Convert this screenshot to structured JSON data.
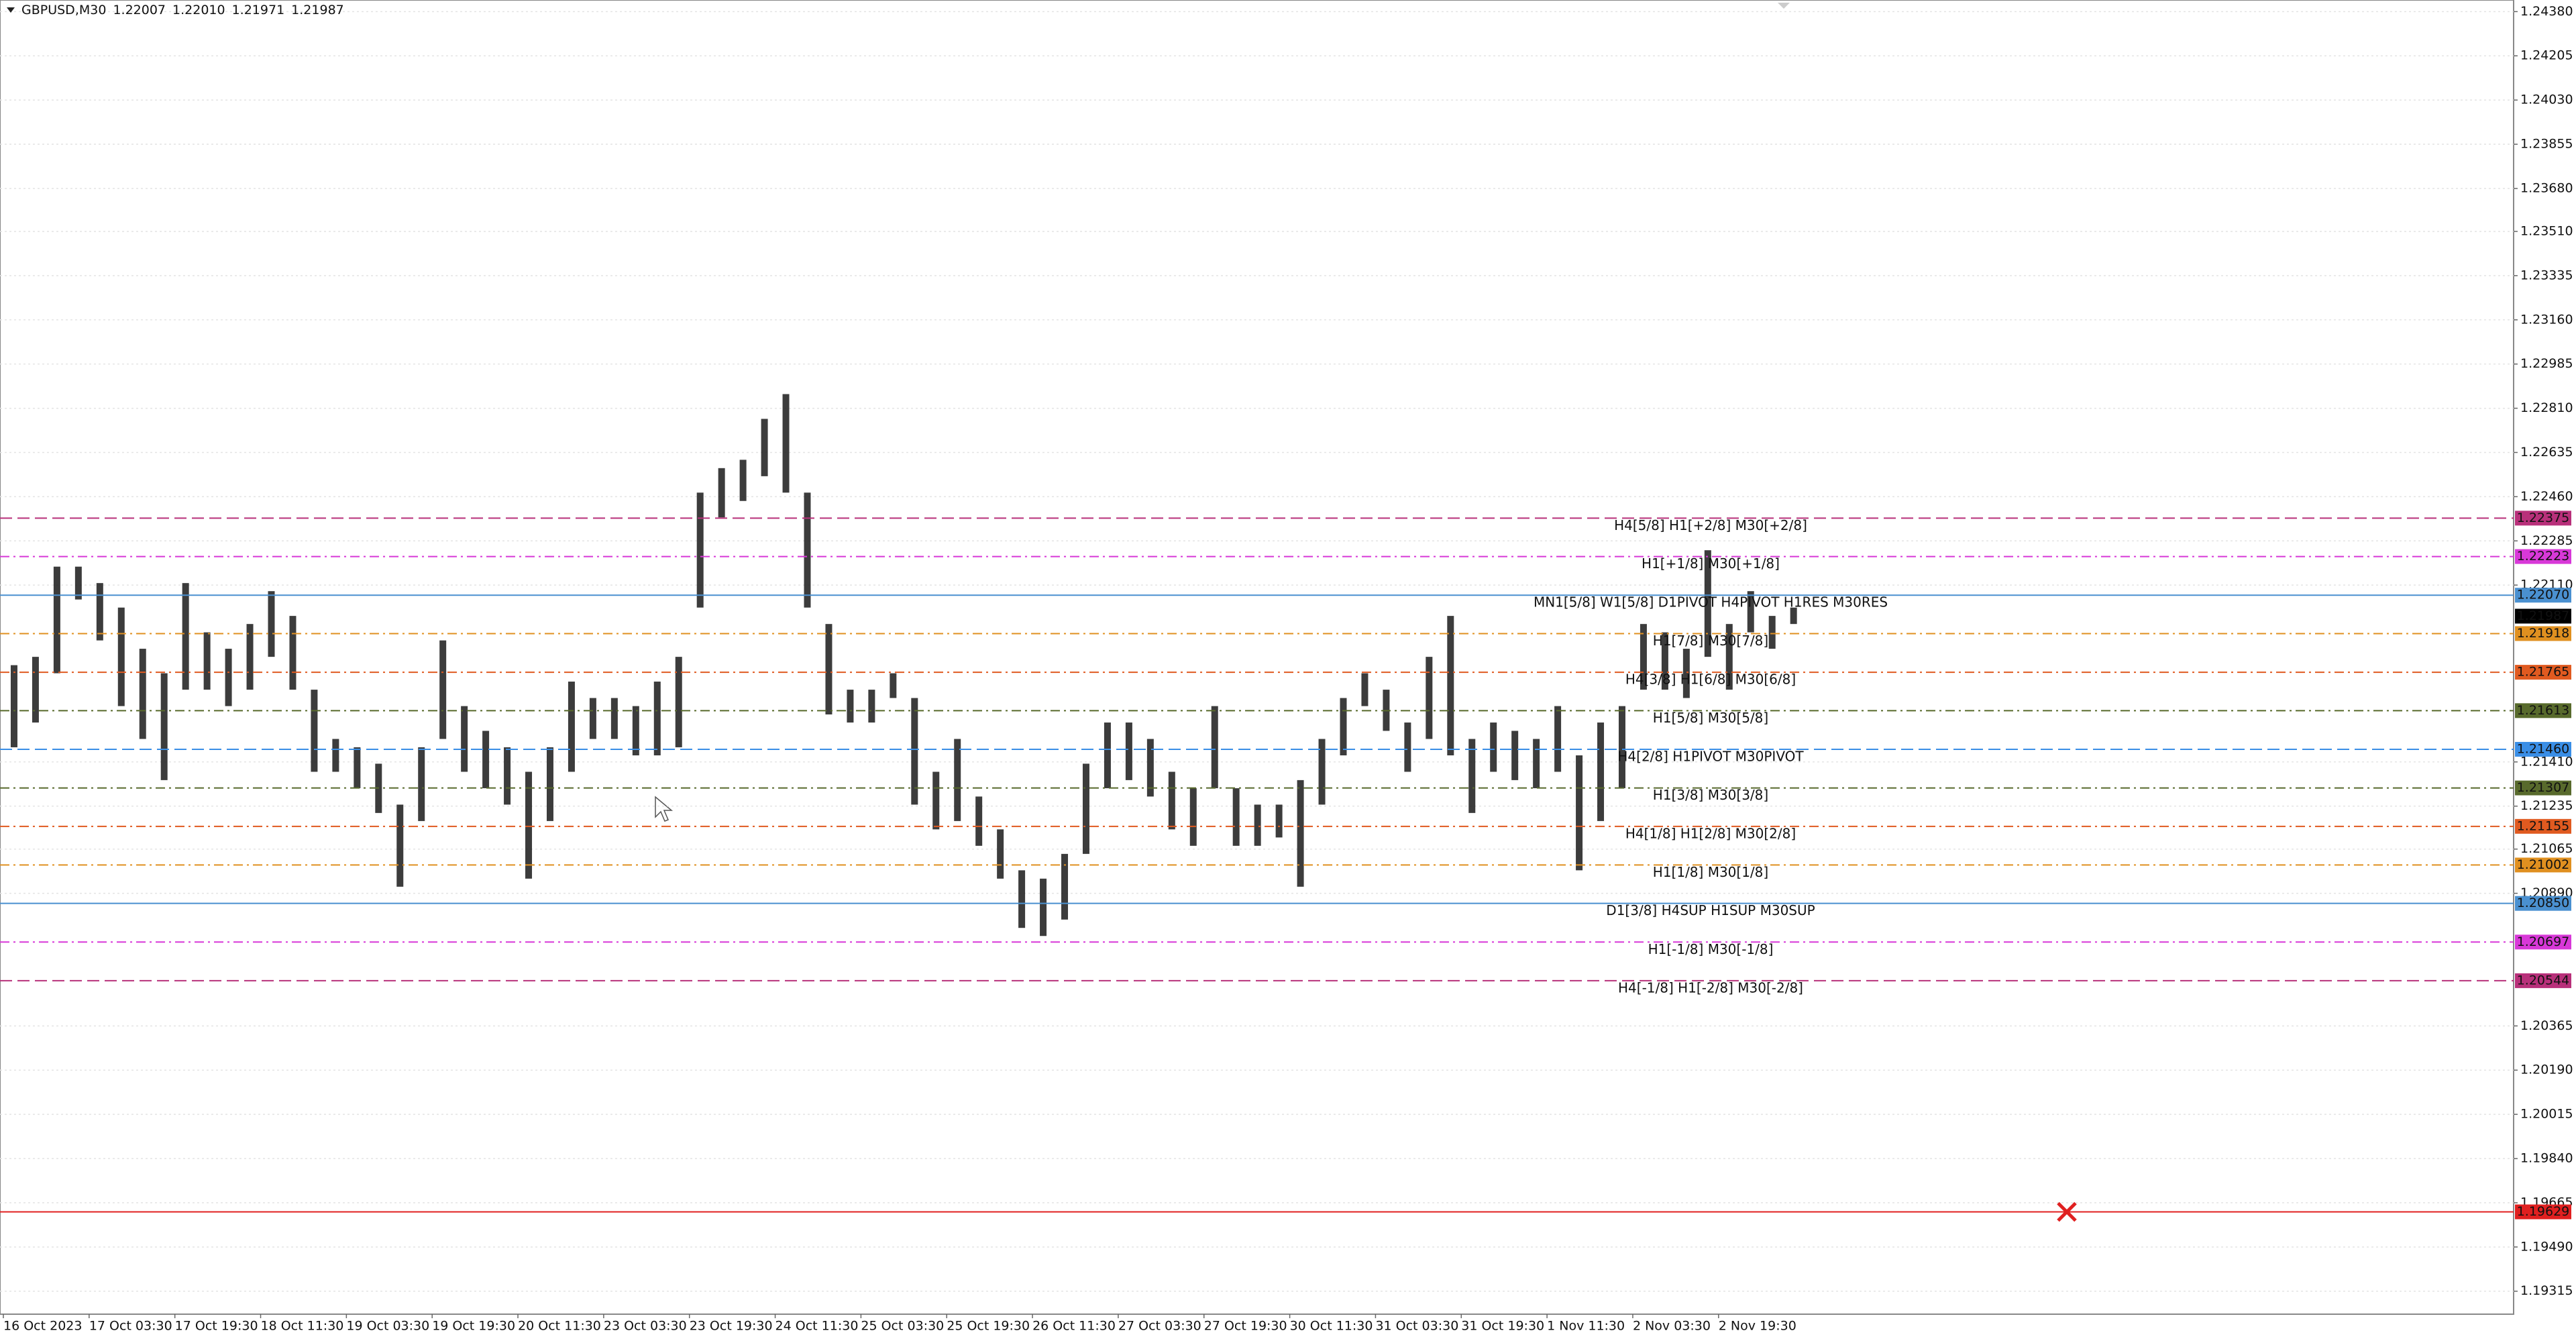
{
  "chart_data": {
    "type": "candlestick",
    "title": "GBPUSD,M30",
    "quote": [
      1.22007,
      {
        "value": 1.2201,
        "label": "1.22010"
      },
      1.21971,
      1.21987
    ],
    "color": "#1a1a1a",
    "categories": [
      "16 Oct 2023",
      null,
      null,
      null,
      "17 Oct 03:30",
      null,
      null,
      null,
      "17 Oct 19:30",
      null,
      null,
      null,
      "18 Oct 11:30",
      null,
      null,
      null,
      "19 Oct 03:30",
      null,
      null,
      null,
      "19 Oct 19:30",
      null,
      null,
      null,
      "20 Oct 11:30",
      null,
      null,
      null,
      "23 Oct 03:30",
      null,
      null,
      null,
      "23 Oct 19:30",
      null,
      null,
      null,
      "24 Oct 11:30",
      null,
      null,
      null,
      "25 Oct 03:30",
      null,
      null,
      null,
      "25 Oct 19:30",
      null,
      null,
      null,
      "26 Oct 11:30",
      null,
      null,
      null,
      "27 Oct 03:30",
      null,
      null,
      null,
      "27 Oct 19:30",
      null,
      null,
      null,
      "30 Oct 11:30",
      null,
      null,
      null,
      "31 Oct 03:30",
      null,
      null,
      null,
      "31 Oct 19:30",
      null,
      null,
      null,
      "1 Nov 11:30",
      null,
      null,
      null,
      "2 Nov 03:30",
      null,
      null,
      null,
      "2 Nov 19:30",
      null,
      null,
      null
    ],
    "high": [
      1.21793,
      1.21826,
      1.22183,
      1.22183,
      1.22118,
      1.22021,
      1.21858,
      1.21761,
      1.22118,
      1.21923,
      1.21858,
      1.21956,
      1.22086,
      1.21988,
      1.21696,
      1.21501,
      1.21468,
      1.21403,
      1.21241,
      1.21468,
      1.21891,
      1.21631,
      1.21533,
      1.21468,
      1.21371,
      1.21468,
      1.21728,
      1.21663,
      1.21663,
      1.21631,
      1.21728,
      1.21826,
      1.22476,
      1.22573,
      1.22606,
      1.22768,
      1.22866,
      1.22476,
      1.21956,
      1.21696,
      1.21696,
      1.21761,
      1.21663,
      1.21371,
      1.21501,
      1.21273,
      1.21143,
      1.20981,
      1.20948,
      1.21046,
      1.21403,
      1.21566,
      1.21566,
      1.21501,
      1.21371,
      1.21306,
      1.21631,
      1.21306,
      1.21241,
      1.21241,
      1.21338,
      1.21501,
      1.21663,
      1.21761,
      1.21696,
      1.21566,
      1.21826,
      1.21988,
      1.21501,
      1.21566,
      1.21533,
      1.21501,
      1.21631,
      1.21436,
      1.21566,
      1.21631,
      1.21956,
      1.21923,
      1.21858,
      1.22248,
      1.21956,
      1.22086,
      1.21988,
      1.22021
    ],
    "low": [
      1.21468,
      1.21566,
      1.21761,
      1.22053,
      1.21891,
      1.21631,
      1.21501,
      1.21338,
      1.21696,
      1.21696,
      1.21631,
      1.21696,
      1.21826,
      1.21696,
      1.21371,
      1.21371,
      1.21306,
      1.21208,
      1.20916,
      1.21176,
      1.21501,
      1.21371,
      1.21306,
      1.21241,
      1.20948,
      1.21176,
      1.21371,
      1.21501,
      1.21501,
      1.21436,
      1.21436,
      1.21468,
      1.22021,
      1.22378,
      1.22443,
      1.22541,
      1.22476,
      1.22021,
      1.21598,
      1.21566,
      1.21566,
      1.21663,
      1.21241,
      1.21143,
      1.21176,
      1.21078,
      1.20948,
      1.20753,
      1.20721,
      1.20786,
      1.21046,
      1.21306,
      1.21338,
      1.21273,
      1.21143,
      1.21078,
      1.21306,
      1.21078,
      1.21078,
      1.21111,
      1.20916,
      1.21241,
      1.21436,
      1.21631,
      1.21533,
      1.21371,
      1.21501,
      1.21436,
      1.21208,
      1.21371,
      1.21338,
      1.21306,
      1.21371,
      1.20981,
      1.21176,
      1.21306,
      1.21696,
      1.21696,
      1.21663,
      1.21826,
      1.21696,
      1.21923,
      1.21858,
      1.21956
    ],
    "ylim": [
      1.19224,
      1.24426
    ],
    "yticks": [
      {
        "value": 1.2438,
        "label": "1.24380"
      },
      1.24205,
      {
        "value": 1.2403,
        "label": "1.24030"
      },
      1.23855,
      {
        "value": 1.2368,
        "label": "1.23680"
      },
      {
        "value": 1.2351,
        "label": "1.23510"
      },
      1.23335,
      {
        "value": 1.2316,
        "label": "1.23160"
      },
      1.22985,
      {
        "value": 1.2281,
        "label": "1.22810"
      },
      1.22635,
      {
        "value": 1.2246,
        "label": "1.22460"
      },
      1.22285,
      {
        "value": 1.2211,
        "label": "1.22110"
      },
      {
        "value": 1.2141,
        "label": "1.21410"
      },
      1.21235,
      1.21065,
      {
        "value": 1.2089,
        "label": "1.20890"
      },
      1.20365,
      {
        "value": 1.2019,
        "label": "1.20190"
      },
      1.20015,
      {
        "value": 1.1984,
        "label": "1.19840"
      },
      1.19665,
      {
        "value": 1.1949,
        "label": "1.19490"
      },
      1.19315
    ],
    "grid": true,
    "levels": [
      {
        "value": 1.22375,
        "text": "H4[5/8] H1[+2/8] M30[+2/8]",
        "color": "#b8307a",
        "dash": "dashed"
      },
      {
        "value": 1.22223,
        "text": "H1[+1/8] M30[+1/8]",
        "color": "#d838d8",
        "dash": "dashdot"
      },
      {
        "value": 1.2207,
        "value_label": "1.22070",
        "text": "MN1[5/8] W1[5/8] D1PIVOT H4PIVOT H1RES M30RES",
        "color": "#4a90d0",
        "dash": "solid"
      },
      {
        "value": 1.21918,
        "text": "H1[7/8] M30[7/8]",
        "color": "#e09020",
        "dash": "dashdot"
      },
      {
        "value": 1.21765,
        "text": "H4[3/8] H1[6/8] M30[6/8]",
        "color": "#e05a20",
        "dash": "dashdot"
      },
      {
        "value": 1.21613,
        "text": "H1[5/8] M30[5/8]",
        "color": "#586a2c",
        "dash": "dashdot"
      },
      {
        "value": 1.2146,
        "value_label": "1.21460",
        "text": "H4[2/8] H1PIVOT M30PIVOT",
        "color": "#3a8ee6",
        "dash": "dashed"
      },
      {
        "value": 1.21307,
        "text": "H1[3/8] M30[3/8]",
        "color": "#586a2c",
        "dash": "dashdot"
      },
      {
        "value": 1.21155,
        "text": "H4[1/8] H1[2/8] M30[2/8]",
        "color": "#e05a20",
        "dash": "dashdot"
      },
      {
        "value": 1.21002,
        "text": "H1[1/8] M30[1/8]",
        "color": "#e09020",
        "dash": "dashdot"
      },
      {
        "value": 1.2085,
        "value_label": "1.20850",
        "text": "D1[3/8] H4SUP H1SUP M30SUP",
        "color": "#4a90d0",
        "dash": "solid"
      },
      {
        "value": 1.20697,
        "text": "H1[-1/8] M30[-1/8]",
        "color": "#d838d8",
        "dash": "dashdot"
      },
      {
        "value": 1.20544,
        "text": "H4[-1/8] H1[-2/8] M30[-2/8]",
        "color": "#b8307a",
        "dash": "dashed"
      },
      {
        "value": 1.19629,
        "color": "#e02020",
        "dash": "solid",
        "marker": "x"
      }
    ]
  }
}
